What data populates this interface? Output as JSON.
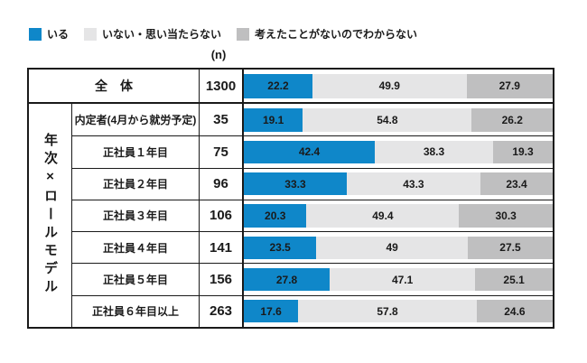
{
  "legend": {
    "items": [
      {
        "label": "いる",
        "color": "#0f87c9"
      },
      {
        "label": "いない・思い当たらない",
        "color": "#e5e5e6"
      },
      {
        "label": "考えたことがないのでわからない",
        "color": "#bfbfc0"
      }
    ]
  },
  "table": {
    "n_header": "(n)",
    "group_label": "年次×ロールモデル"
  },
  "chart_data": {
    "type": "bar",
    "orientation": "horizontal",
    "stacked": true,
    "xlim": [
      0,
      100
    ],
    "grid": false,
    "legend_position": "top-left",
    "series_names": [
      "いる",
      "いない・思い当たらない",
      "考えたことがないのでわからない"
    ],
    "series_colors": [
      "#0f87c9",
      "#e5e5e6",
      "#bfbfc0"
    ],
    "value_unit": "%",
    "rows": [
      {
        "label": "全　体",
        "n": "1300",
        "values": [
          22.2,
          49.9,
          27.9
        ]
      },
      {
        "label": "内定者(4月から就労予定)",
        "n": "35",
        "values": [
          19.1,
          54.8,
          26.2
        ]
      },
      {
        "label": "正社員１年目",
        "n": "75",
        "values": [
          42.4,
          38.3,
          19.3
        ]
      },
      {
        "label": "正社員２年目",
        "n": "96",
        "values": [
          33.3,
          43.3,
          23.4
        ]
      },
      {
        "label": "正社員３年目",
        "n": "106",
        "values": [
          20.3,
          49.4,
          30.3
        ]
      },
      {
        "label": "正社員４年目",
        "n": "141",
        "values": [
          23.5,
          49,
          27.5
        ]
      },
      {
        "label": "正社員５年目",
        "n": "156",
        "values": [
          27.8,
          47.1,
          25.1
        ]
      },
      {
        "label": "正社員６年目以上",
        "n": "263",
        "values": [
          17.6,
          57.8,
          24.6
        ]
      }
    ]
  }
}
